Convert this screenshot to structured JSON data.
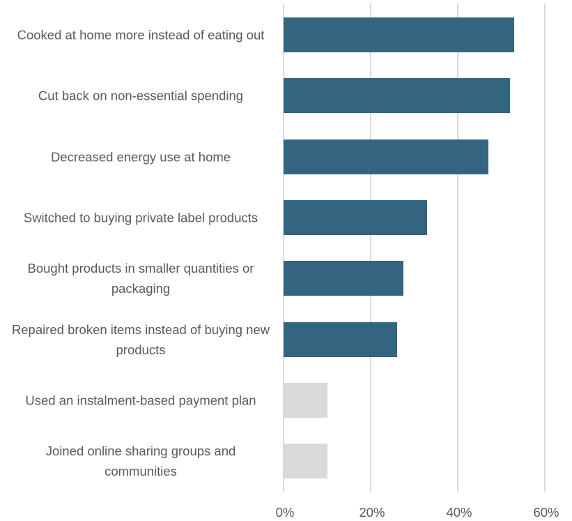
{
  "chart_data": {
    "type": "bar",
    "orientation": "horizontal",
    "categories": [
      "Cooked at home more instead of eating out",
      "Cut back on non-essential spending",
      "Decreased energy use at home",
      "Switched to buying private label products",
      "Bought products in smaller quantities or packaging",
      "Repaired broken items instead of buying new products",
      "Used an instalment-based payment plan",
      "Joined online sharing groups and communities"
    ],
    "values": [
      53,
      52,
      47,
      33,
      27.5,
      26,
      10,
      10
    ],
    "colors": [
      "#336580",
      "#336580",
      "#336580",
      "#336580",
      "#336580",
      "#336580",
      "#d9d9d9",
      "#d9d9d9"
    ],
    "xlim": [
      0,
      65
    ],
    "xticks": [
      {
        "value": 0,
        "label": "0%"
      },
      {
        "value": 20,
        "label": "20%"
      },
      {
        "value": 40,
        "label": "40%"
      },
      {
        "value": 60,
        "label": "60%"
      }
    ],
    "grid": true
  }
}
